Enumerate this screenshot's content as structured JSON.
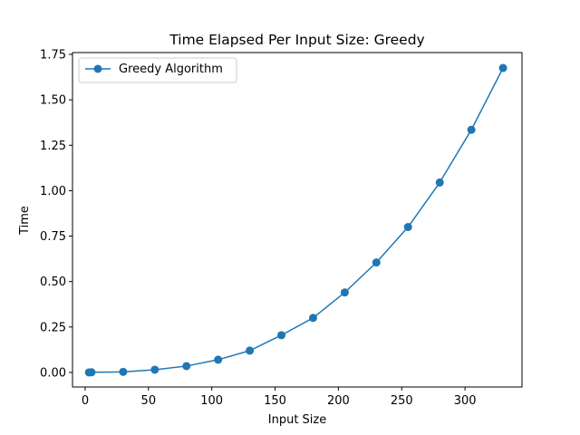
{
  "chart_data": {
    "type": "line",
    "title": "Time Elapsed Per Input Size: Greedy",
    "xlabel": "Input Size",
    "ylabel": "Time",
    "xlim": [
      -10,
      345
    ],
    "ylim": [
      -0.08,
      1.76
    ],
    "xticks": [
      0,
      50,
      100,
      150,
      200,
      250,
      300
    ],
    "yticks": [
      0.0,
      0.25,
      0.5,
      0.75,
      1.0,
      1.25,
      1.5,
      1.75
    ],
    "ytick_labels": [
      "0.00",
      "0.25",
      "0.50",
      "0.75",
      "1.00",
      "1.25",
      "1.50",
      "1.75"
    ],
    "grid": false,
    "legend_position": "top-left",
    "series": [
      {
        "name": "Greedy Algorithm",
        "color": "#1f77b4",
        "marker": "circle",
        "x": [
          3,
          5,
          30,
          55,
          80,
          105,
          130,
          155,
          180,
          205,
          230,
          255,
          280,
          305,
          330
        ],
        "y": [
          0.0,
          0.001,
          0.003,
          0.015,
          0.035,
          0.07,
          0.12,
          0.205,
          0.3,
          0.44,
          0.605,
          0.8,
          1.045,
          1.335,
          1.675
        ]
      }
    ]
  }
}
